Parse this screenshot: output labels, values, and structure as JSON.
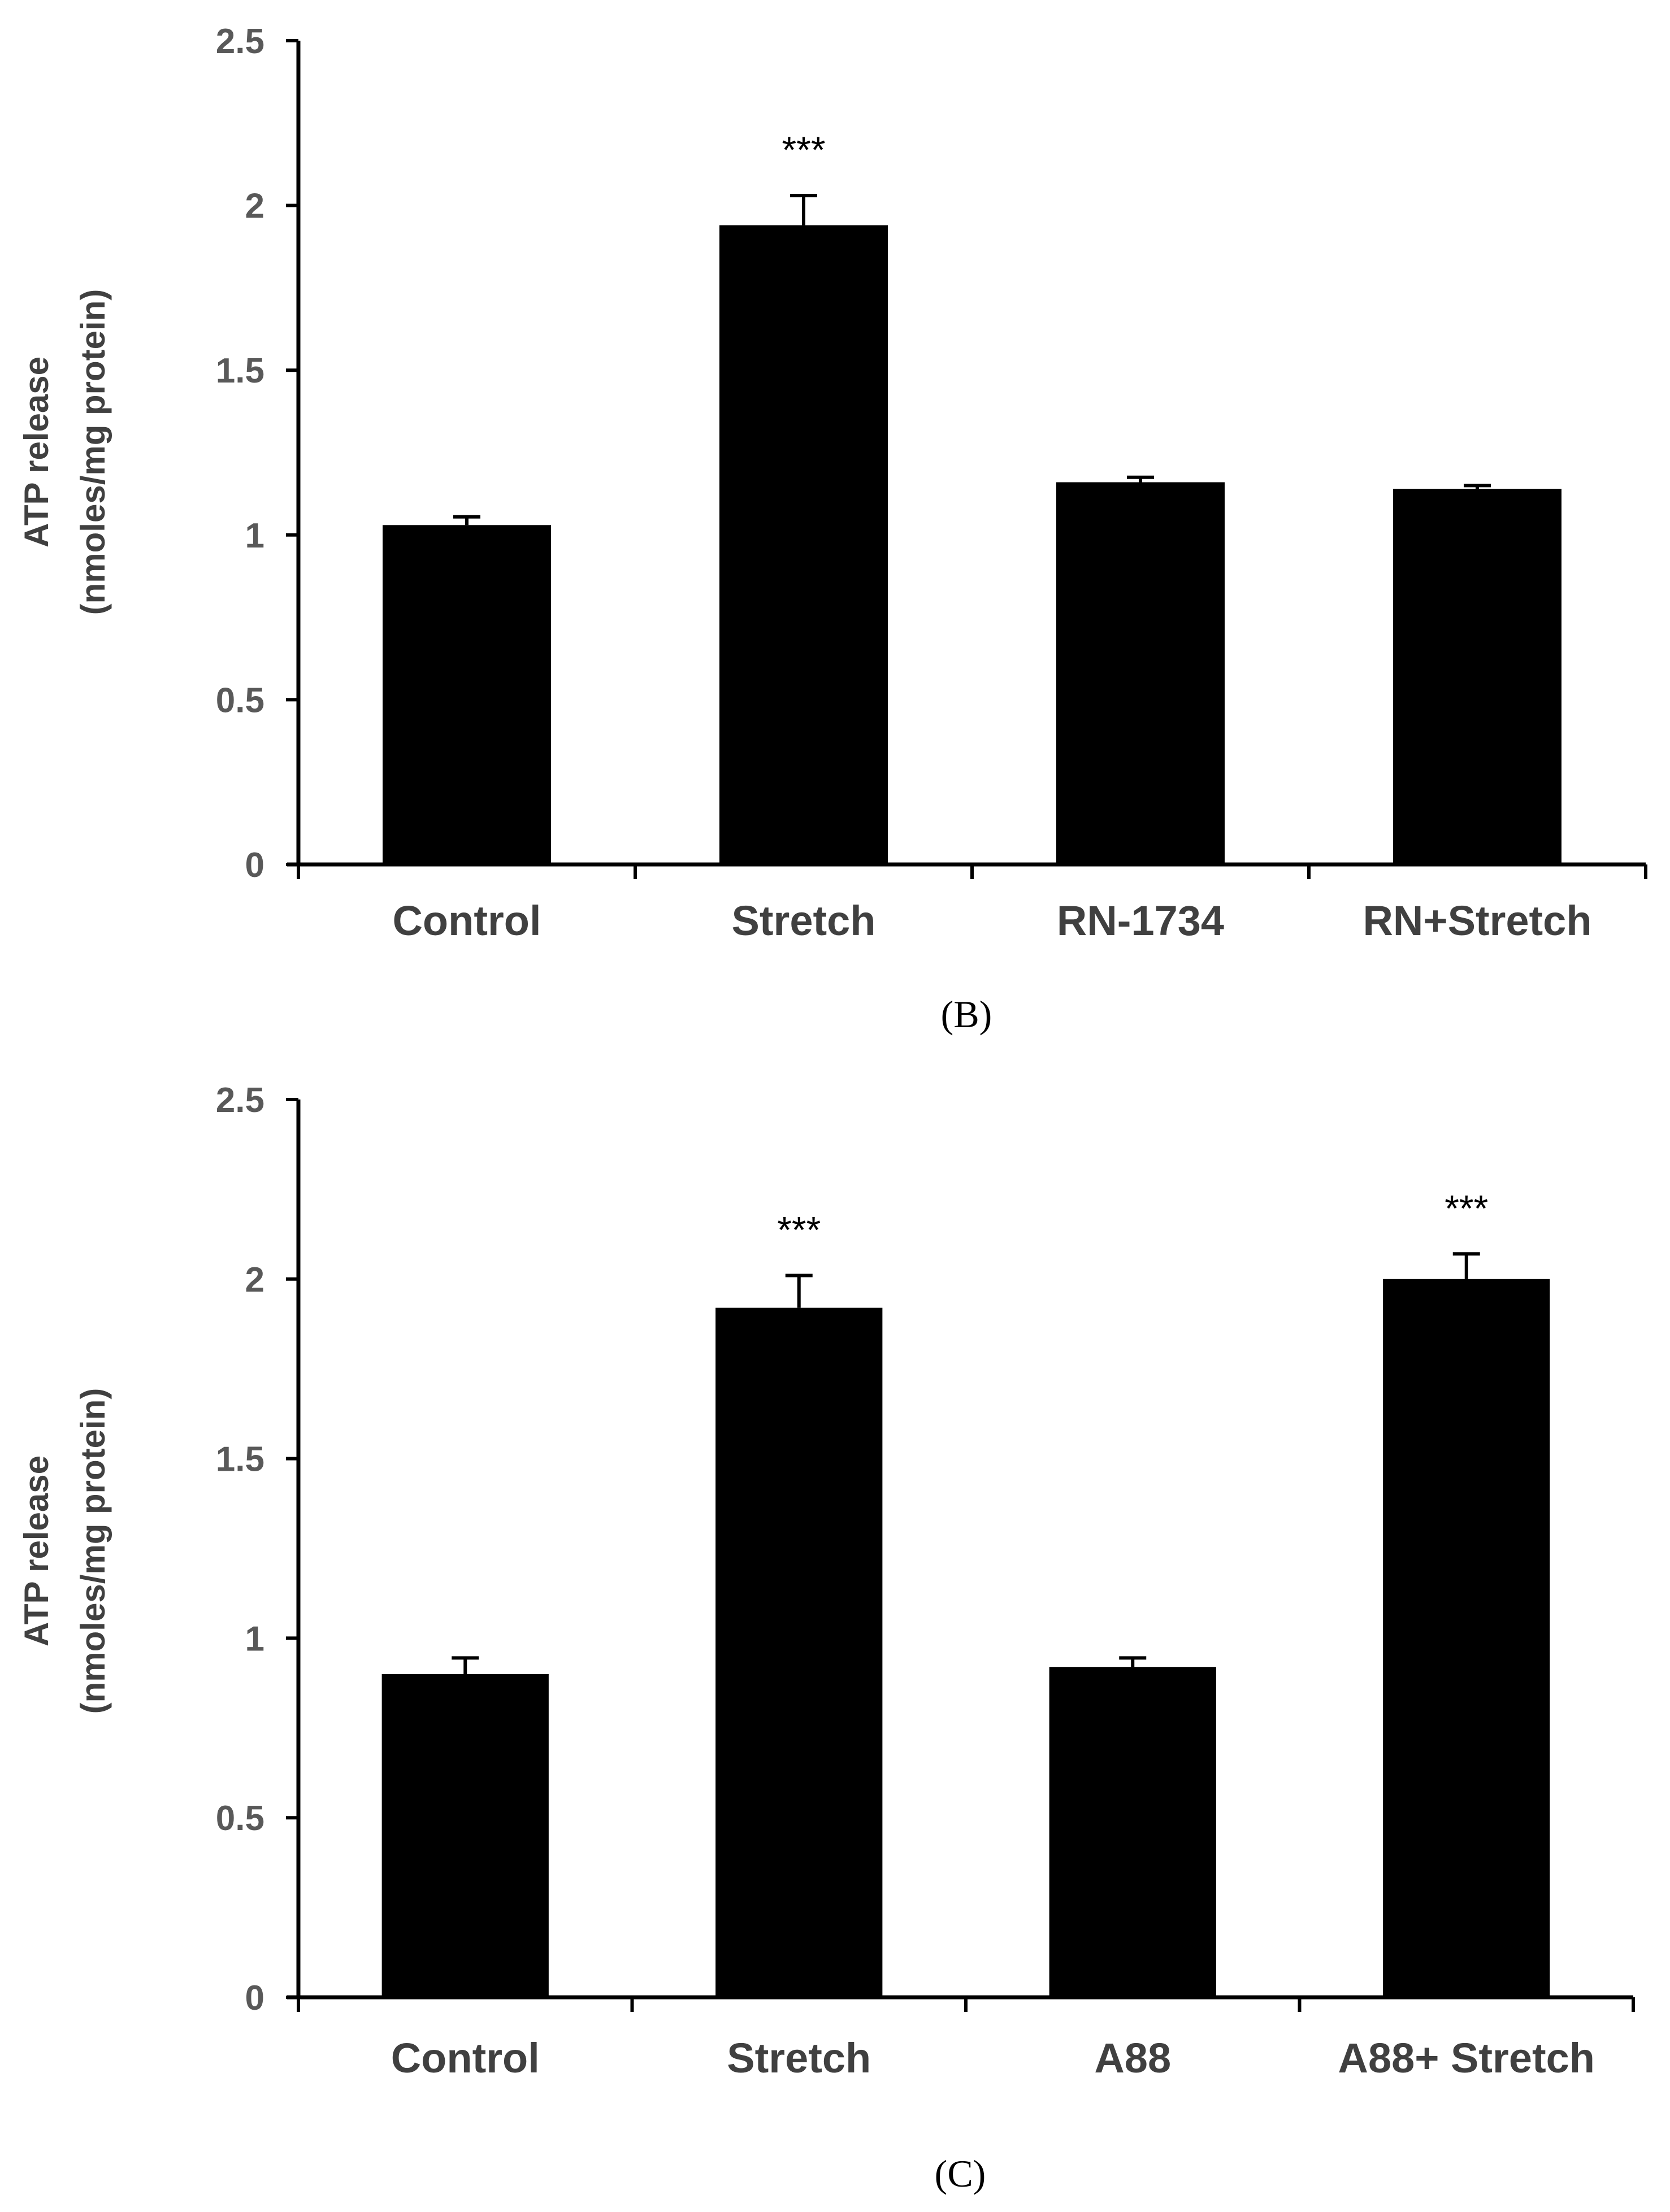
{
  "colors": {
    "bar": "#000000",
    "axis": "#000000",
    "tick_text": "#595959",
    "category_text": "#404040"
  },
  "chart_data": [
    {
      "panel": "B",
      "panel_label": "(B)",
      "type": "bar",
      "categories": [
        "Control",
        "Stretch",
        "RN-1734",
        "RN+Stretch"
      ],
      "values": [
        1.03,
        1.94,
        1.16,
        1.14
      ],
      "errors": [
        0.025,
        0.09,
        0.015,
        0.01
      ],
      "annotations": [
        "",
        "***",
        "",
        ""
      ],
      "ylabel": [
        "ATP release",
        "(nmoles/mg protein)"
      ],
      "ylim": [
        0,
        2.5
      ],
      "yticks": [
        "0",
        "0.5",
        "1",
        "1.5",
        "2",
        "2.5"
      ],
      "grid": false
    },
    {
      "panel": "C",
      "panel_label": "(C)",
      "type": "bar",
      "categories": [
        "Control",
        "Stretch",
        "A88",
        "A88+ Stretch"
      ],
      "values": [
        0.9,
        1.92,
        0.92,
        2.0
      ],
      "errors": [
        0.045,
        0.09,
        0.025,
        0.07
      ],
      "annotations": [
        "",
        "***",
        "",
        "***"
      ],
      "ylabel": [
        "ATP release",
        "(nmoles/mg protein)"
      ],
      "ylim": [
        0,
        2.5
      ],
      "yticks": [
        "0",
        "0.5",
        "1",
        "1.5",
        "2",
        "2.5"
      ],
      "grid": false
    }
  ]
}
